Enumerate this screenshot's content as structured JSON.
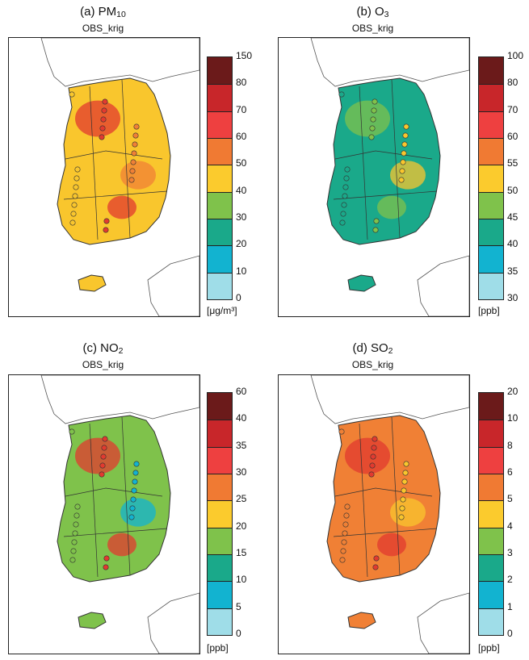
{
  "panels": [
    {
      "title_prefix": "(a) PM",
      "title_sub": "10",
      "subtitle": "OBS_krig",
      "unit": "[μg/m³]",
      "ticks": [
        "150",
        "80",
        "70",
        "60",
        "50",
        "40",
        "30",
        "20",
        "10",
        "0"
      ],
      "dominant": "yellow"
    },
    {
      "title_prefix": "(b) O",
      "title_sub": "3",
      "subtitle": "OBS_krig",
      "unit": "[ppb]",
      "ticks": [
        "100",
        "80",
        "70",
        "60",
        "55",
        "50",
        "45",
        "40",
        "35",
        "30"
      ],
      "dominant": "teal"
    },
    {
      "title_prefix": "(c) NO",
      "title_sub": "2",
      "subtitle": "OBS_krig",
      "unit": "[ppb]",
      "ticks": [
        "60",
        "40",
        "35",
        "30",
        "25",
        "20",
        "15",
        "10",
        "5",
        "0"
      ],
      "dominant": "green"
    },
    {
      "title_prefix": "(d) SO",
      "title_sub": "2",
      "subtitle": "OBS_krig",
      "unit": "[ppb]",
      "ticks": [
        "20",
        "10",
        "8",
        "6",
        "5",
        "4",
        "3",
        "2",
        "1",
        "0"
      ],
      "dominant": "orange"
    }
  ],
  "colors": {
    "scale": [
      "#6b1a1a",
      "#c8262a",
      "#ee4040",
      "#f07a33",
      "#fbcb2d",
      "#7fc24b",
      "#1aa98a",
      "#12b3d0",
      "#9fdde8"
    ]
  }
}
